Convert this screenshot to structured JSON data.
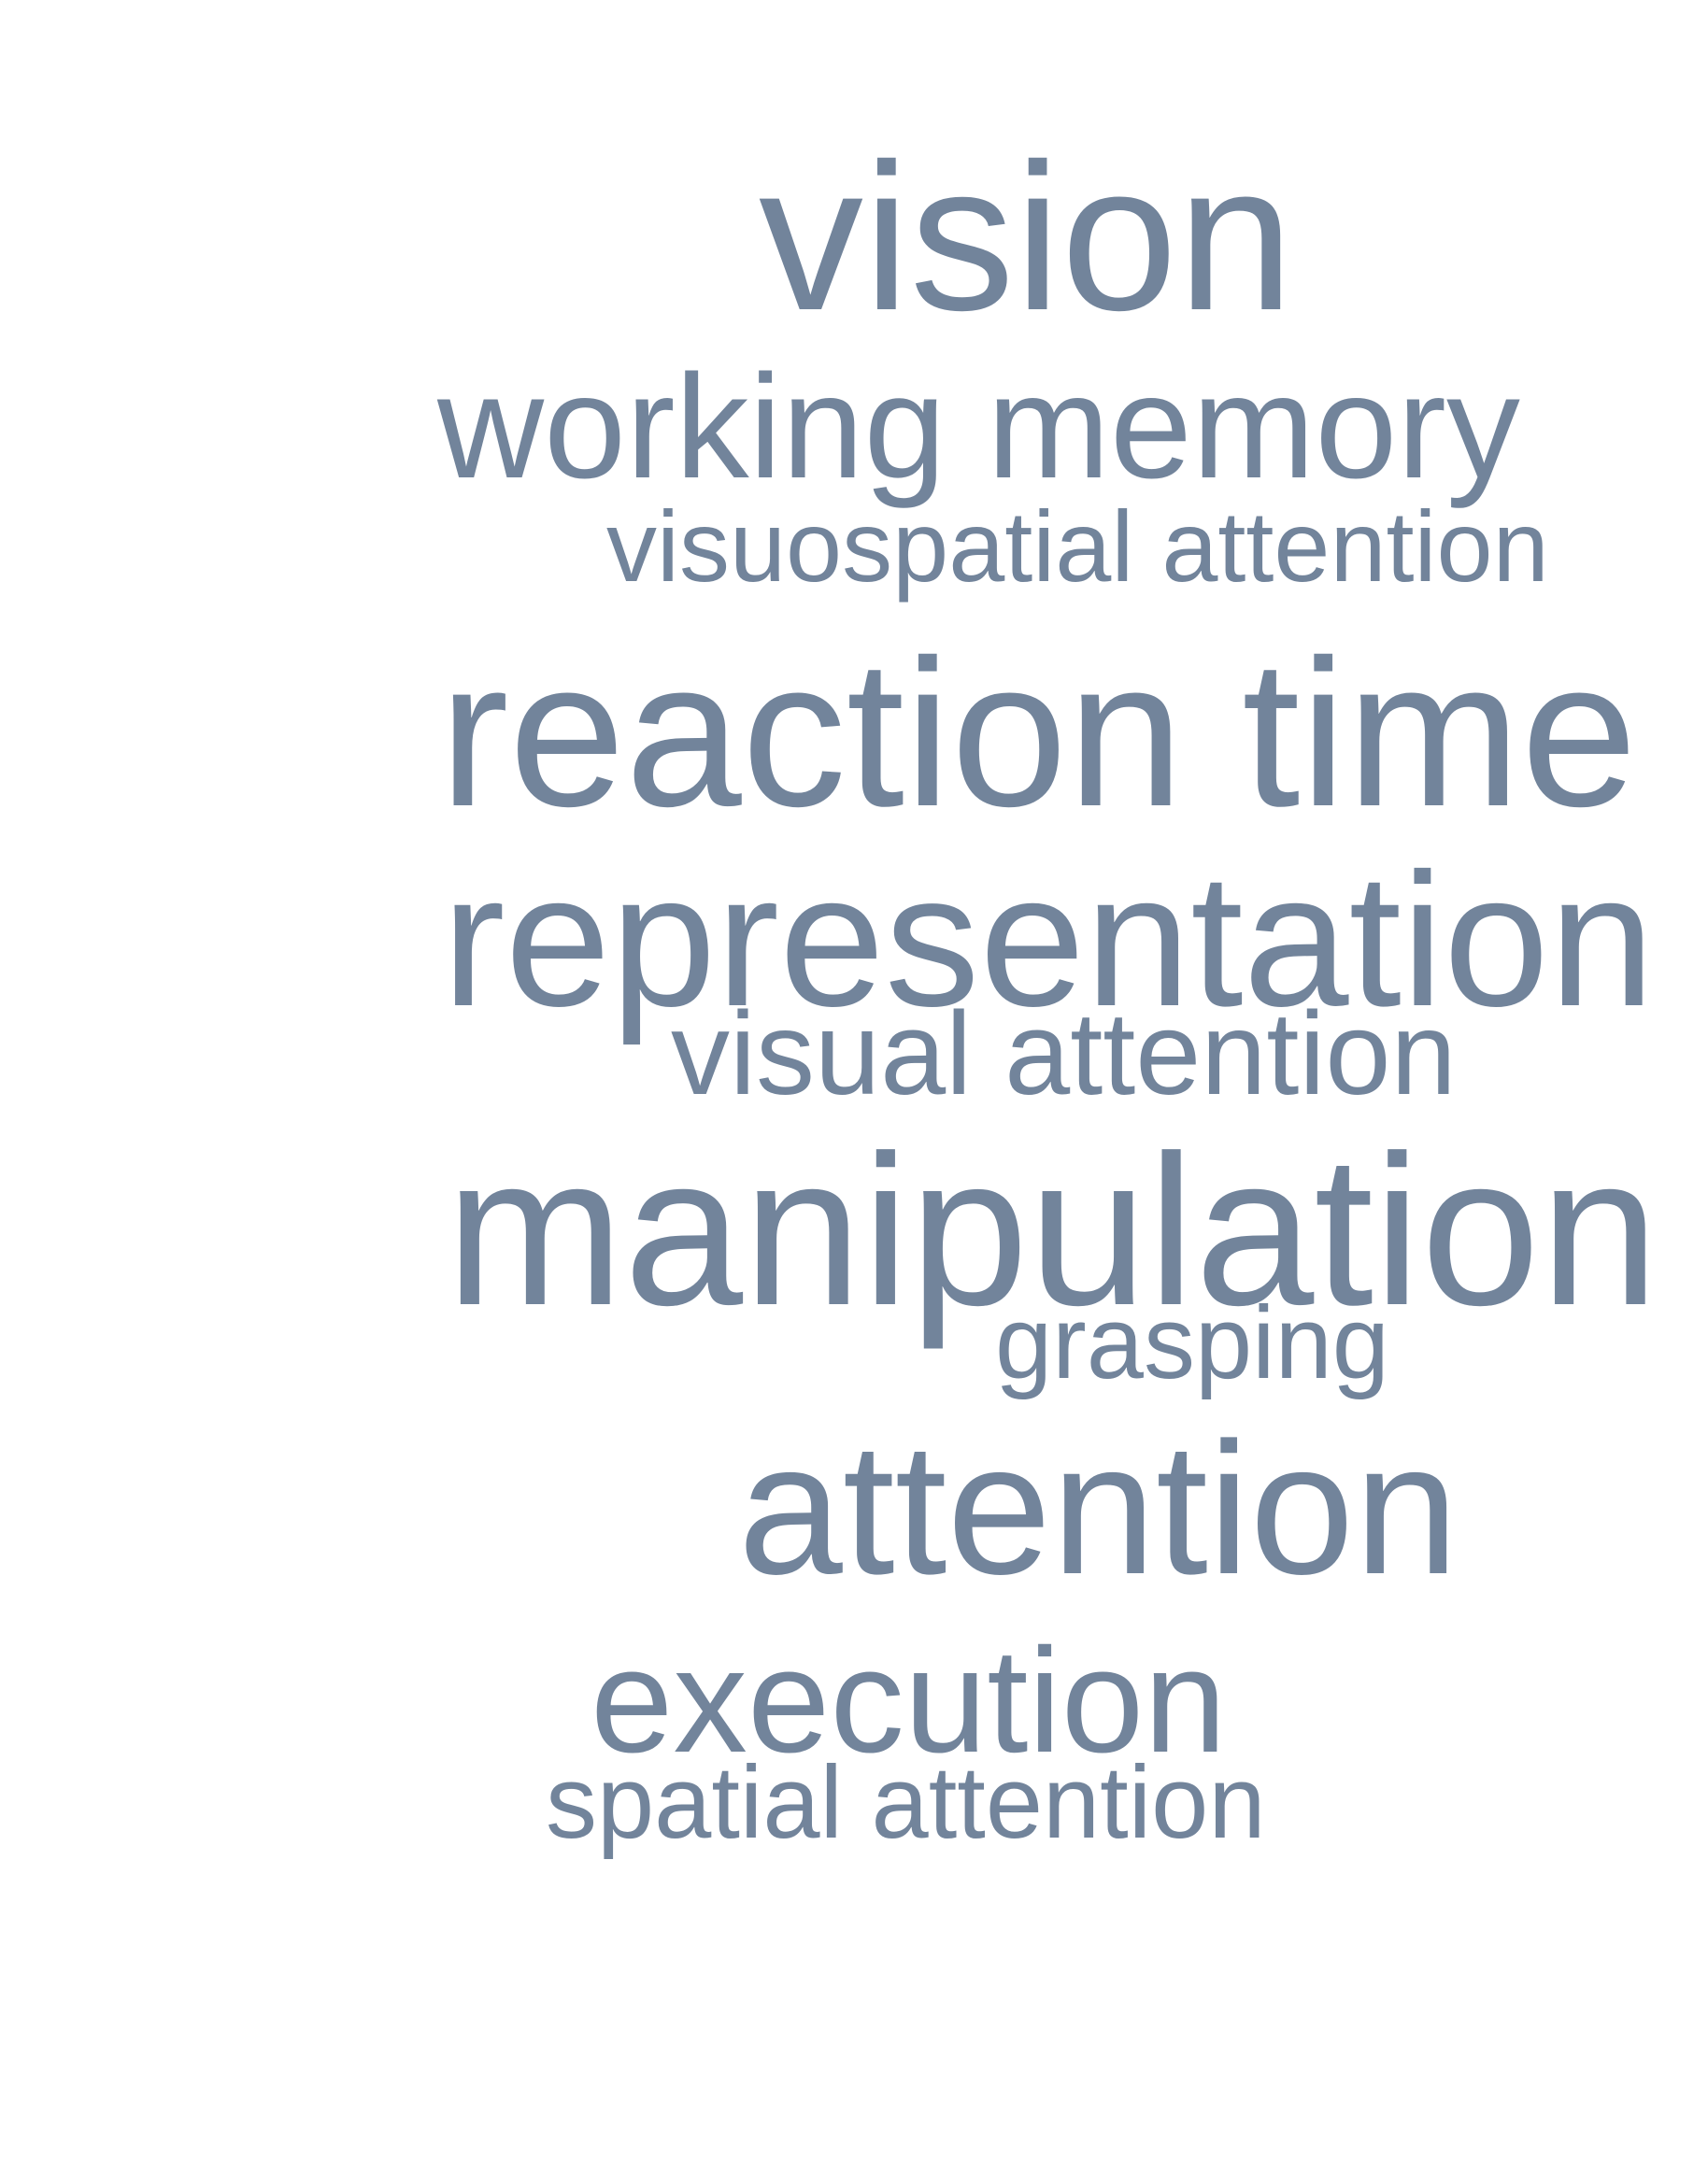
{
  "word_cloud": {
    "color": "#72849b",
    "words": [
      {
        "text": "vision"
      },
      {
        "text": "working memory"
      },
      {
        "text": "visuospatial attention"
      },
      {
        "text": "reaction time"
      },
      {
        "text": "representation"
      },
      {
        "text": "visual attention"
      },
      {
        "text": "manipulation"
      },
      {
        "text": "grasping"
      },
      {
        "text": "attention"
      },
      {
        "text": "execution"
      },
      {
        "text": "spatial attention"
      }
    ]
  }
}
